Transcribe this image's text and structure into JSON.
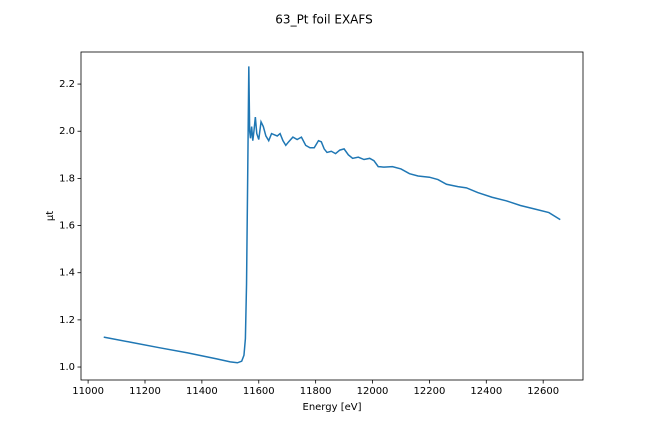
{
  "chart_data": {
    "type": "line",
    "title": "63_Pt foil EXAFS",
    "x_label": "Energy [eV]",
    "y_label": "μt",
    "x": [
      11055,
      11150,
      11250,
      11350,
      11450,
      11500,
      11525,
      11540,
      11548,
      11553,
      11557,
      11561,
      11565,
      11568,
      11571,
      11575,
      11579,
      11583,
      11588,
      11593,
      11600,
      11608,
      11616,
      11625,
      11635,
      11645,
      11655,
      11665,
      11675,
      11685,
      11695,
      11705,
      11720,
      11735,
      11750,
      11765,
      11780,
      11795,
      11810,
      11820,
      11830,
      11840,
      11855,
      11870,
      11885,
      11900,
      11915,
      11930,
      11950,
      11970,
      11990,
      12005,
      12020,
      12040,
      12070,
      12100,
      12130,
      12160,
      12200,
      12230,
      12260,
      12300,
      12330,
      12370,
      12420,
      12470,
      12520,
      12570,
      12620,
      12660
    ],
    "series": [
      {
        "name": "μt",
        "color": "#1f77b4",
        "values": [
          1.127,
          1.105,
          1.082,
          1.06,
          1.035,
          1.022,
          1.018,
          1.025,
          1.05,
          1.12,
          1.35,
          1.8,
          2.275,
          2.0,
          1.97,
          2.02,
          1.96,
          2.0,
          2.06,
          1.99,
          1.965,
          2.04,
          2.02,
          1.98,
          1.96,
          1.99,
          1.985,
          1.98,
          1.99,
          1.96,
          1.94,
          1.955,
          1.975,
          1.965,
          1.975,
          1.94,
          1.93,
          1.93,
          1.96,
          1.955,
          1.925,
          1.91,
          1.915,
          1.905,
          1.92,
          1.925,
          1.9,
          1.885,
          1.89,
          1.88,
          1.885,
          1.875,
          1.85,
          1.848,
          1.85,
          1.84,
          1.82,
          1.81,
          1.805,
          1.795,
          1.775,
          1.765,
          1.76,
          1.74,
          1.72,
          1.705,
          1.685,
          1.67,
          1.655,
          1.625
        ]
      }
    ],
    "xlim": [
      10975,
      12740
    ],
    "ylim": [
      0.945,
      2.336
    ],
    "xticks": [
      11000,
      11200,
      11400,
      11600,
      11800,
      12000,
      12200,
      12400,
      12600
    ],
    "yticks": [
      {
        "value": 1.0,
        "label": "1.0"
      },
      1.2,
      1.4,
      1.6,
      1.8,
      {
        "value": 2.0,
        "label": "2.0"
      },
      2.2
    ]
  }
}
